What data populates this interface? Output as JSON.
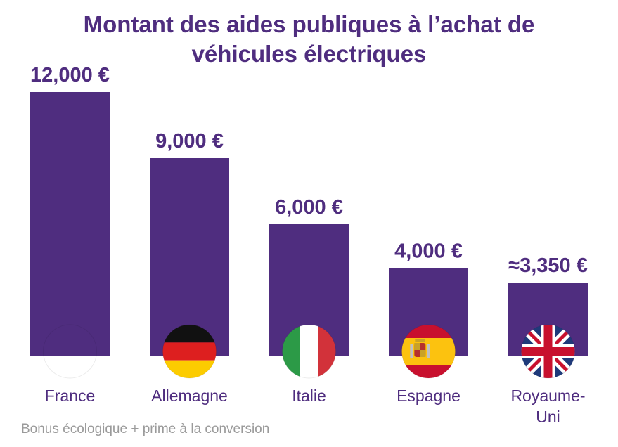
{
  "colors": {
    "bar": "#4f2d7f",
    "title": "#4f2d7f",
    "footnote": "#9a9a9a",
    "category": "#4f2d7f"
  },
  "chart_data": {
    "type": "bar",
    "title_lines": [
      "Montant des aides publiques à l’achat de",
      "véhicules électriques"
    ],
    "categories": [
      "France",
      "Allemagne",
      "Italie",
      "Espagne",
      "Royaume-Uni"
    ],
    "category_lines": [
      [
        "France"
      ],
      [
        "Allemagne"
      ],
      [
        "Italie"
      ],
      [
        "Espagne"
      ],
      [
        "Royaume-",
        "Uni"
      ]
    ],
    "values": [
      12000,
      9000,
      6000,
      4000,
      3350
    ],
    "value_labels": [
      "12,000 €",
      "9,000 €",
      "6,000 €",
      "4,000 €",
      "≈3,350 €"
    ],
    "flags": [
      "france-flag",
      "germany-flag",
      "italy-flag",
      "spain-flag",
      "uk-flag"
    ],
    "xlabel": "",
    "ylabel": "",
    "ylim": [
      0,
      12000
    ],
    "grid": false,
    "legend": "none"
  },
  "footnote": "Bonus écologique + prime à la conversion"
}
